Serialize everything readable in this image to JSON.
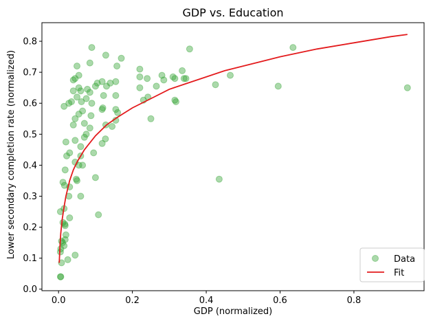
{
  "chart_data": {
    "type": "scatter",
    "title": "GDP vs. Education",
    "xlabel": "GDP (normalized)",
    "ylabel": "Lower secondary completion rate (normalized)",
    "xlim": [
      -0.045,
      0.99
    ],
    "ylim": [
      -0.005,
      0.86
    ],
    "xticks": [
      "0.0",
      "0.2",
      "0.4",
      "0.6",
      "0.8"
    ],
    "xtick_values": [
      0.0,
      0.2,
      0.4,
      0.6,
      0.8
    ],
    "yticks": [
      "0.0",
      "0.1",
      "0.2",
      "0.3",
      "0.4",
      "0.5",
      "0.6",
      "0.7",
      "0.8"
    ],
    "ytick_values": [
      0.0,
      0.1,
      0.2,
      0.3,
      0.4,
      0.5,
      0.6,
      0.7,
      0.8
    ],
    "grid": false,
    "legend_position": "lower-right",
    "series": [
      {
        "name": "Data",
        "kind": "scatter",
        "color": "#2ca02c",
        "alpha": 0.4,
        "points": [
          [
            0.005,
            0.04
          ],
          [
            0.006,
            0.04
          ],
          [
            0.008,
            0.085
          ],
          [
            0.005,
            0.12
          ],
          [
            0.006,
            0.13
          ],
          [
            0.008,
            0.155
          ],
          [
            0.011,
            0.15
          ],
          [
            0.015,
            0.14
          ],
          [
            0.018,
            0.16
          ],
          [
            0.02,
            0.175
          ],
          [
            0.017,
            0.21
          ],
          [
            0.012,
            0.215
          ],
          [
            0.018,
            0.205
          ],
          [
            0.025,
            0.095
          ],
          [
            0.03,
            0.23
          ],
          [
            0.005,
            0.25
          ],
          [
            0.015,
            0.26
          ],
          [
            0.028,
            0.3
          ],
          [
            0.03,
            0.33
          ],
          [
            0.012,
            0.345
          ],
          [
            0.016,
            0.335
          ],
          [
            0.018,
            0.385
          ],
          [
            0.022,
            0.43
          ],
          [
            0.03,
            0.44
          ],
          [
            0.045,
            0.11
          ],
          [
            0.048,
            0.355
          ],
          [
            0.05,
            0.35
          ],
          [
            0.055,
            0.4
          ],
          [
            0.06,
            0.3
          ],
          [
            0.065,
            0.4
          ],
          [
            0.045,
            0.41
          ],
          [
            0.045,
            0.48
          ],
          [
            0.06,
            0.43
          ],
          [
            0.06,
            0.46
          ],
          [
            0.04,
            0.53
          ],
          [
            0.045,
            0.55
          ],
          [
            0.055,
            0.565
          ],
          [
            0.07,
            0.535
          ],
          [
            0.075,
            0.5
          ],
          [
            0.07,
            0.49
          ],
          [
            0.085,
            0.52
          ],
          [
            0.095,
            0.44
          ],
          [
            0.1,
            0.36
          ],
          [
            0.108,
            0.24
          ],
          [
            0.118,
            0.47
          ],
          [
            0.127,
            0.485
          ],
          [
            0.128,
            0.53
          ],
          [
            0.145,
            0.525
          ],
          [
            0.155,
            0.545
          ],
          [
            0.02,
            0.475
          ],
          [
            0.015,
            0.59
          ],
          [
            0.028,
            0.6
          ],
          [
            0.035,
            0.605
          ],
          [
            0.04,
            0.64
          ],
          [
            0.05,
            0.62
          ],
          [
            0.055,
            0.65
          ],
          [
            0.06,
            0.64
          ],
          [
            0.062,
            0.605
          ],
          [
            0.065,
            0.575
          ],
          [
            0.075,
            0.615
          ],
          [
            0.078,
            0.645
          ],
          [
            0.085,
            0.635
          ],
          [
            0.09,
            0.6
          ],
          [
            0.088,
            0.56
          ],
          [
            0.04,
            0.675
          ],
          [
            0.045,
            0.68
          ],
          [
            0.05,
            0.72
          ],
          [
            0.055,
            0.69
          ],
          [
            0.085,
            0.73
          ],
          [
            0.09,
            0.78
          ],
          [
            0.1,
            0.655
          ],
          [
            0.105,
            0.665
          ],
          [
            0.118,
            0.67
          ],
          [
            0.12,
            0.585
          ],
          [
            0.122,
            0.625
          ],
          [
            0.118,
            0.58
          ],
          [
            0.13,
            0.655
          ],
          [
            0.14,
            0.665
          ],
          [
            0.155,
            0.625
          ],
          [
            0.155,
            0.58
          ],
          [
            0.16,
            0.57
          ],
          [
            0.155,
            0.67
          ],
          [
            0.158,
            0.72
          ],
          [
            0.17,
            0.745
          ],
          [
            0.128,
            0.755
          ],
          [
            0.22,
            0.71
          ],
          [
            0.22,
            0.685
          ],
          [
            0.22,
            0.65
          ],
          [
            0.23,
            0.61
          ],
          [
            0.24,
            0.68
          ],
          [
            0.242,
            0.62
          ],
          [
            0.25,
            0.55
          ],
          [
            0.265,
            0.655
          ],
          [
            0.28,
            0.69
          ],
          [
            0.285,
            0.675
          ],
          [
            0.31,
            0.685
          ],
          [
            0.315,
            0.68
          ],
          [
            0.315,
            0.61
          ],
          [
            0.318,
            0.605
          ],
          [
            0.335,
            0.705
          ],
          [
            0.34,
            0.68
          ],
          [
            0.345,
            0.68
          ],
          [
            0.355,
            0.775
          ],
          [
            0.425,
            0.66
          ],
          [
            0.435,
            0.355
          ],
          [
            0.465,
            0.69
          ],
          [
            0.595,
            0.655
          ],
          [
            0.635,
            0.78
          ],
          [
            0.945,
            0.65
          ]
        ]
      },
      {
        "name": "Fit",
        "kind": "line",
        "color": "#e31a1c",
        "points": [
          [
            0.002,
            0.085
          ],
          [
            0.004,
            0.14
          ],
          [
            0.006,
            0.18
          ],
          [
            0.01,
            0.225
          ],
          [
            0.015,
            0.265
          ],
          [
            0.02,
            0.3
          ],
          [
            0.03,
            0.35
          ],
          [
            0.04,
            0.385
          ],
          [
            0.05,
            0.41
          ],
          [
            0.07,
            0.45
          ],
          [
            0.1,
            0.495
          ],
          [
            0.13,
            0.53
          ],
          [
            0.16,
            0.555
          ],
          [
            0.2,
            0.585
          ],
          [
            0.25,
            0.615
          ],
          [
            0.3,
            0.645
          ],
          [
            0.35,
            0.665
          ],
          [
            0.4,
            0.685
          ],
          [
            0.45,
            0.705
          ],
          [
            0.5,
            0.72
          ],
          [
            0.6,
            0.75
          ],
          [
            0.7,
            0.775
          ],
          [
            0.8,
            0.795
          ],
          [
            0.9,
            0.815
          ],
          [
            0.945,
            0.822
          ]
        ]
      }
    ]
  }
}
